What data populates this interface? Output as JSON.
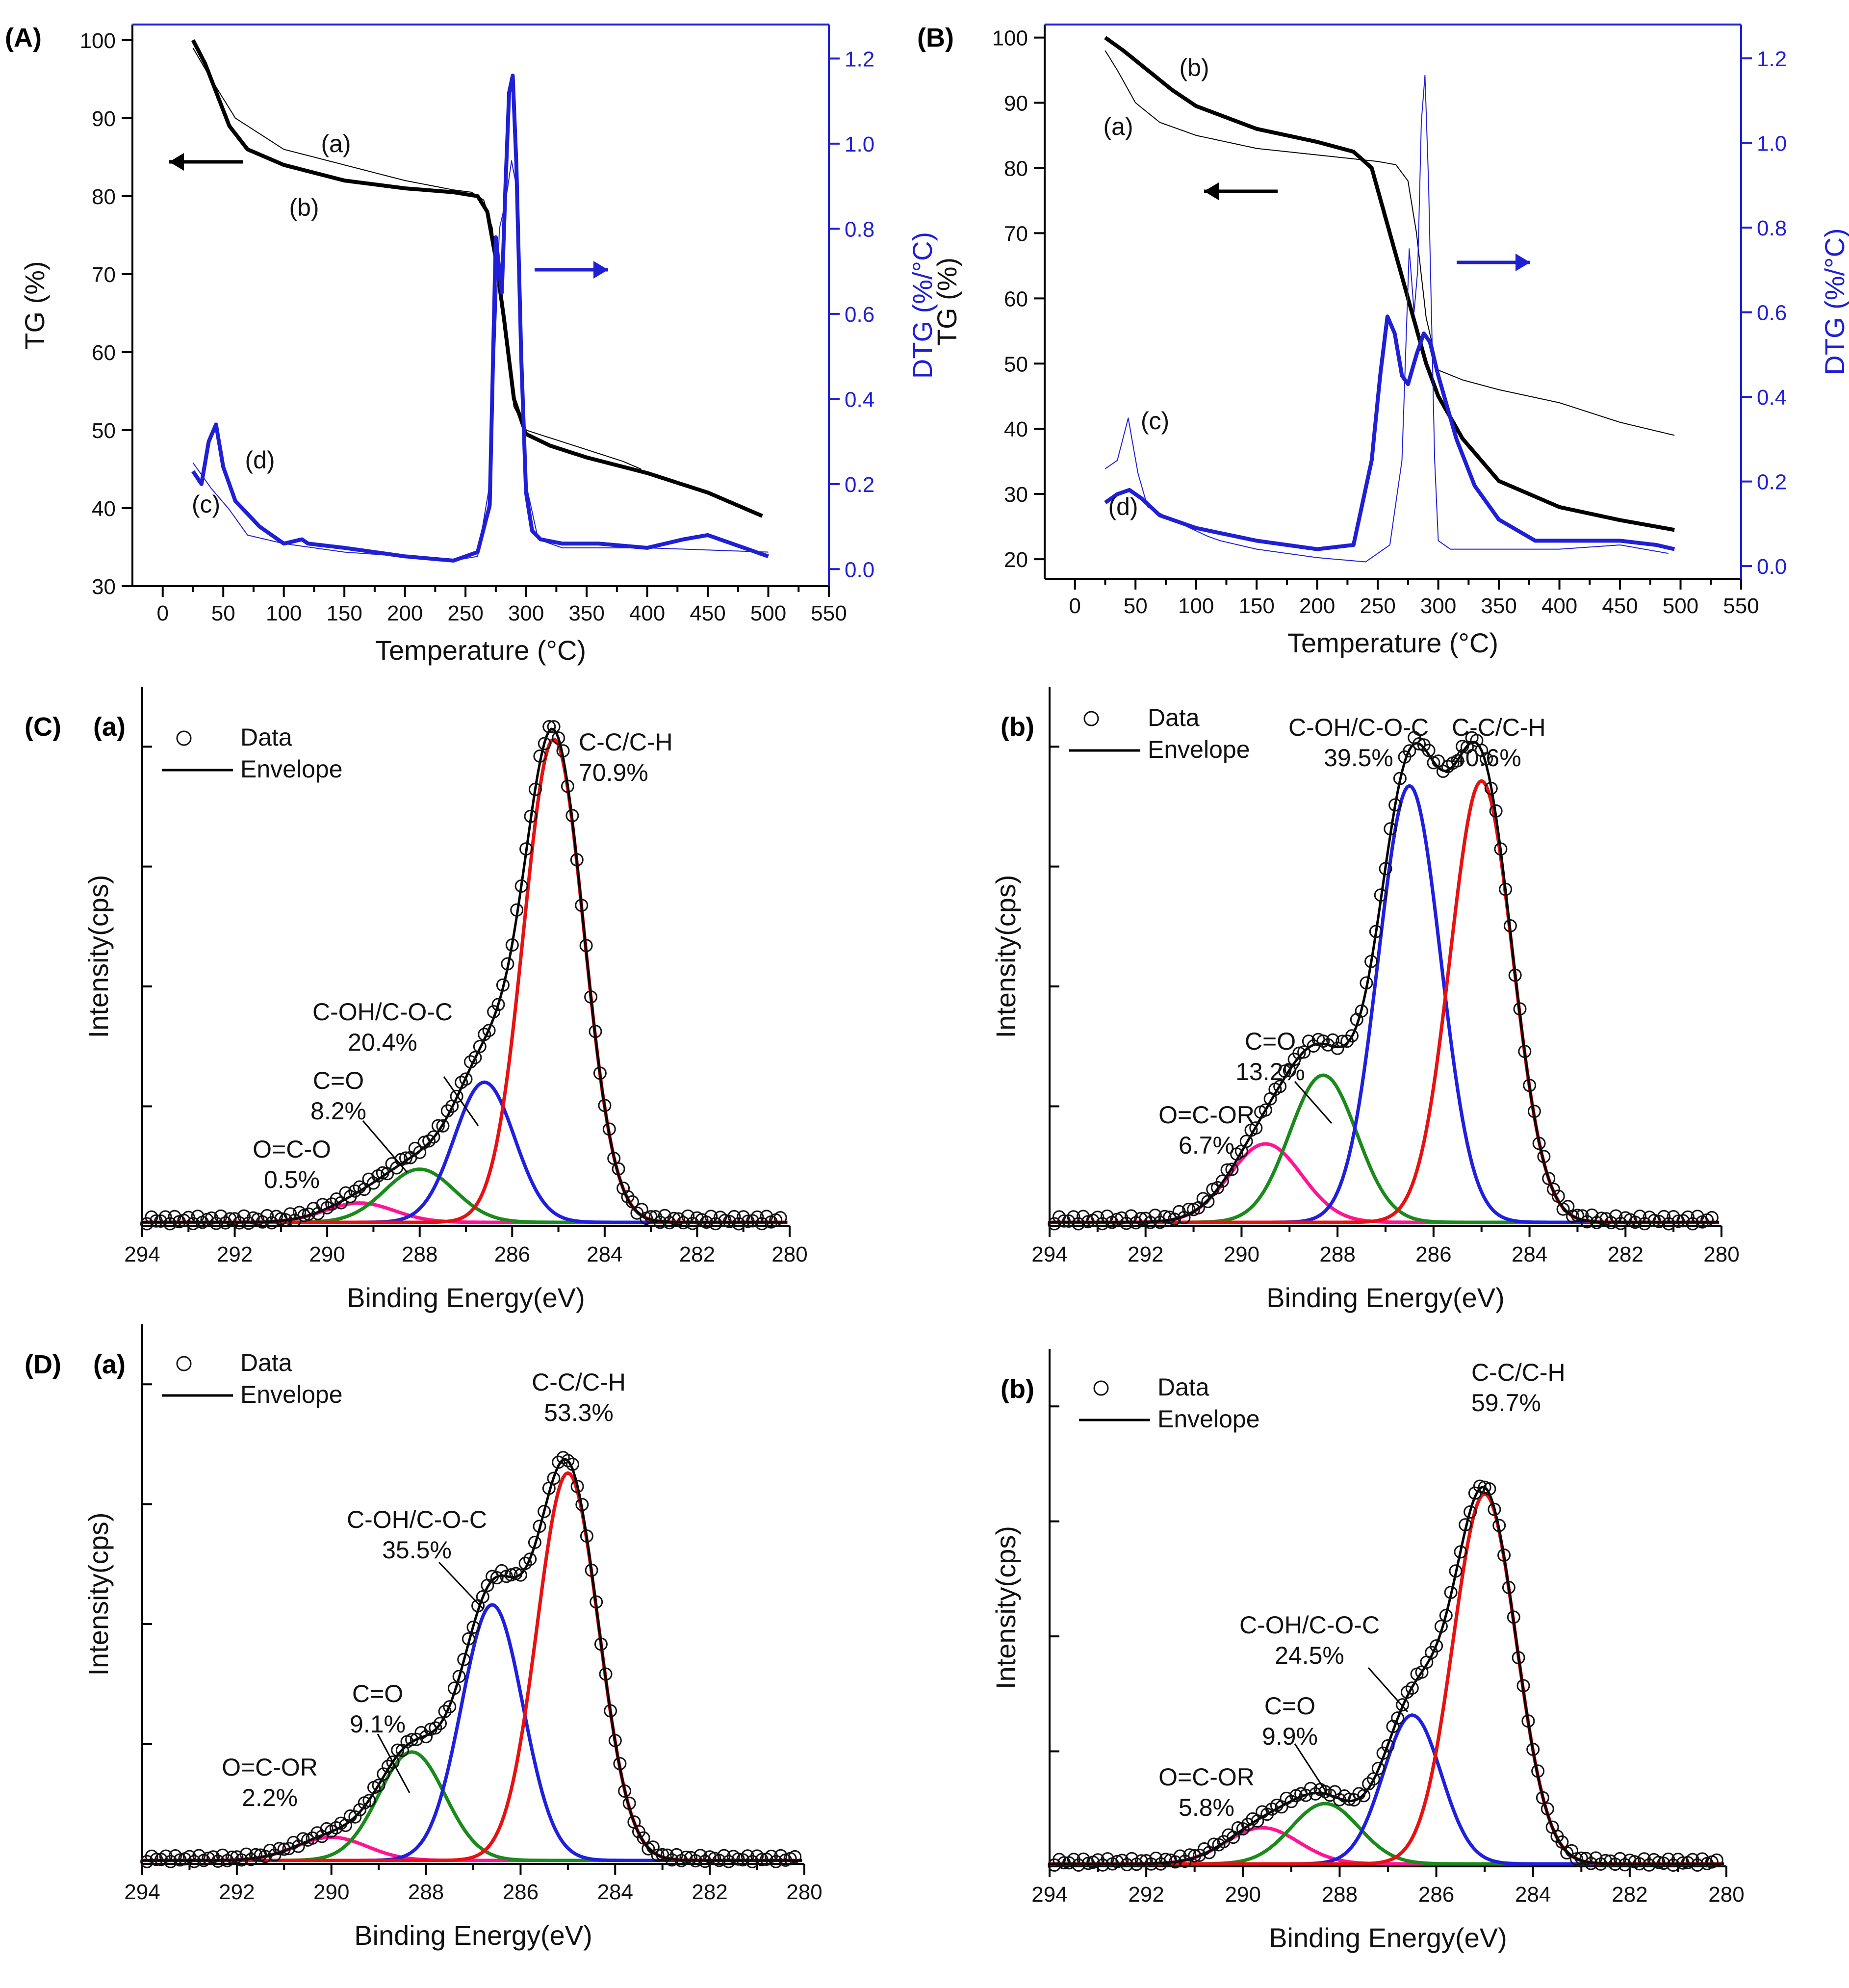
{
  "chart_data": [
    {
      "type": "line",
      "panel": "(A)",
      "xlabel": "Temperature (°C)",
      "ylabel": "TG (%)",
      "y2label": "DTG (%/°C)",
      "xlim": [
        -25,
        550
      ],
      "ylim": [
        30,
        102
      ],
      "y2lim": [
        -0.04,
        1.28
      ],
      "xticks": [
        "0",
        "50",
        "100",
        "150",
        "200",
        "250",
        "300",
        "350",
        "400",
        "450",
        "500",
        "550"
      ],
      "yticks": [
        "30",
        "40",
        "50",
        "60",
        "70",
        "80",
        "90",
        "100"
      ],
      "y2ticks": [
        "0.0",
        "0.2",
        "0.4",
        "0.6",
        "0.8",
        "1.0",
        "1.2"
      ],
      "series": [
        {
          "name": "(a)",
          "axis": "TG",
          "color": "#000000",
          "width": 2,
          "x": [
            25,
            40,
            60,
            80,
            100,
            150,
            200,
            240,
            255,
            265,
            272,
            280,
            290,
            300,
            320,
            350,
            380,
            395
          ],
          "y": [
            99,
            95,
            90,
            88,
            86,
            84,
            82,
            80.8,
            80.5,
            79.5,
            76,
            66,
            53,
            50,
            49,
            47.5,
            46,
            45
          ]
        },
        {
          "name": "(b)",
          "axis": "TG",
          "color": "#000000",
          "width": 8,
          "x": [
            25,
            35,
            45,
            55,
            70,
            100,
            150,
            200,
            240,
            260,
            268,
            275,
            282,
            290,
            300,
            320,
            350,
            400,
            450,
            495
          ],
          "y": [
            100,
            97,
            93,
            89,
            86,
            84,
            82,
            81,
            80.5,
            80,
            78,
            72,
            64,
            54,
            49.5,
            48,
            46.5,
            44.5,
            42,
            39
          ]
        },
        {
          "name": "(c)",
          "axis": "DTG",
          "color": "#1f1fd6",
          "width": 2,
          "x": [
            25,
            40,
            55,
            70,
            100,
            150,
            200,
            240,
            260,
            270,
            278,
            282,
            285,
            288,
            292,
            295,
            300,
            310,
            330,
            400,
            500
          ],
          "y": [
            0.25,
            0.19,
            0.14,
            0.08,
            0.06,
            0.04,
            0.03,
            0.02,
            0.03,
            0.2,
            0.8,
            0.85,
            0.9,
            0.96,
            0.9,
            0.6,
            0.2,
            0.07,
            0.05,
            0.05,
            0.04
          ]
        },
        {
          "name": "(d)",
          "axis": "DTG",
          "color": "#1f1fd6",
          "width": 8,
          "x": [
            25,
            32,
            38,
            44,
            50,
            60,
            80,
            100,
            115,
            120,
            150,
            200,
            240,
            260,
            270,
            275,
            280,
            283,
            286,
            289,
            292,
            296,
            300,
            305,
            312,
            330,
            360,
            400,
            430,
            450,
            470,
            490,
            500
          ],
          "y": [
            0.23,
            0.2,
            0.3,
            0.34,
            0.24,
            0.16,
            0.1,
            0.06,
            0.07,
            0.06,
            0.05,
            0.03,
            0.02,
            0.04,
            0.15,
            0.78,
            0.65,
            0.9,
            1.12,
            1.16,
            0.95,
            0.5,
            0.18,
            0.09,
            0.07,
            0.06,
            0.06,
            0.05,
            0.07,
            0.08,
            0.06,
            0.04,
            0.03
          ]
        }
      ],
      "annotations": [
        "(a)",
        "(b)",
        "(c)",
        "(d)"
      ]
    },
    {
      "type": "line",
      "panel": "(B)",
      "xlabel": "Temperature (°C)",
      "ylabel": "TG (%)",
      "y2label": "DTG (%/°C)",
      "xlim": [
        -25,
        550
      ],
      "ylim": [
        17,
        102
      ],
      "y2lim": [
        -0.03,
        1.28
      ],
      "xticks": [
        "0",
        "50",
        "100",
        "150",
        "200",
        "250",
        "300",
        "350",
        "400",
        "450",
        "500",
        "550"
      ],
      "yticks": [
        "20",
        "30",
        "40",
        "50",
        "60",
        "70",
        "80",
        "90",
        "100"
      ],
      "y2ticks": [
        "0.0",
        "0.2",
        "0.4",
        "0.6",
        "0.8",
        "1.0",
        "1.2"
      ],
      "series": [
        {
          "name": "(a)",
          "axis": "TG",
          "color": "#000000",
          "width": 2,
          "x": [
            25,
            35,
            50,
            70,
            100,
            150,
            200,
            250,
            265,
            275,
            282,
            290,
            300,
            320,
            350,
            400,
            450,
            495
          ],
          "y": [
            98,
            95,
            90,
            87,
            85,
            83,
            82,
            81,
            80.5,
            78,
            70,
            57,
            49,
            47.5,
            46,
            44,
            41,
            39
          ]
        },
        {
          "name": "(b)",
          "axis": "TG",
          "color": "#000000",
          "width": 8,
          "x": [
            25,
            40,
            60,
            80,
            100,
            150,
            200,
            230,
            245,
            260,
            275,
            290,
            300,
            320,
            350,
            400,
            450,
            495
          ],
          "y": [
            100,
            98,
            95,
            92,
            89.5,
            86,
            84,
            82.5,
            80,
            70,
            60,
            50,
            45,
            38.5,
            32,
            28,
            26,
            24.5
          ]
        },
        {
          "name": "(c)",
          "axis": "DTG",
          "color": "#1f1fd6",
          "width": 2,
          "x": [
            25,
            35,
            44,
            52,
            60,
            80,
            110,
            120,
            150,
            200,
            240,
            260,
            270,
            276,
            280,
            283,
            286,
            289,
            292,
            297,
            300,
            310,
            350,
            400,
            450,
            490
          ],
          "y": [
            0.23,
            0.25,
            0.35,
            0.22,
            0.14,
            0.11,
            0.07,
            0.06,
            0.04,
            0.02,
            0.01,
            0.05,
            0.25,
            0.75,
            0.6,
            0.7,
            1.05,
            1.16,
            0.9,
            0.25,
            0.06,
            0.04,
            0.04,
            0.04,
            0.05,
            0.03
          ]
        },
        {
          "name": "(d)",
          "axis": "DTG",
          "color": "#1f1fd6",
          "width": 8,
          "x": [
            25,
            35,
            45,
            55,
            70,
            100,
            150,
            200,
            230,
            245,
            252,
            258,
            264,
            270,
            275,
            282,
            288,
            293,
            300,
            315,
            330,
            350,
            380,
            420,
            450,
            480,
            495
          ],
          "y": [
            0.15,
            0.17,
            0.18,
            0.16,
            0.12,
            0.09,
            0.06,
            0.04,
            0.05,
            0.25,
            0.45,
            0.59,
            0.55,
            0.45,
            0.43,
            0.5,
            0.55,
            0.53,
            0.45,
            0.3,
            0.19,
            0.11,
            0.06,
            0.06,
            0.06,
            0.05,
            0.04
          ]
        }
      ],
      "annotations": [
        "(a)",
        "(b)",
        "(c)",
        "(d)"
      ]
    },
    {
      "type": "line",
      "panel": "(C)",
      "subpanel": "(a)",
      "xlabel": "Binding Energy(eV)",
      "ylabel": "Intensity(cps)",
      "xlim": [
        294,
        280
      ],
      "xticks": [
        "294",
        "292",
        "290",
        "288",
        "286",
        "284",
        "282",
        "280"
      ],
      "legend": [
        "Data",
        "Envelope"
      ],
      "components": [
        {
          "name": "O=C-O",
          "center": 289.3,
          "height": 0.04,
          "sigma": 0.75,
          "color": "#ff1493",
          "label": "O=C-O",
          "percent": "0.5%"
        },
        {
          "name": "C=O",
          "center": 288.0,
          "height": 0.11,
          "sigma": 0.75,
          "color": "#1a8a1a",
          "label": "C=O",
          "percent": "8.2%"
        },
        {
          "name": "C-OH/C-O-C",
          "center": 286.6,
          "height": 0.29,
          "sigma": 0.65,
          "color": "#1f1fe0",
          "label": "C-OH/C-O-C",
          "percent": "20.4%"
        },
        {
          "name": "C-C/C-H",
          "center": 285.1,
          "height": 1.0,
          "sigma": 0.65,
          "color": "#e81010",
          "label": "C-C/C-H",
          "percent": "70.9%"
        }
      ]
    },
    {
      "type": "line",
      "panel": "",
      "subpanel": "(b)",
      "xlabel": "Binding Energy(eV)",
      "ylabel": "Intensity(cps)",
      "xlim": [
        294,
        280
      ],
      "xticks": [
        "294",
        "292",
        "290",
        "288",
        "286",
        "284",
        "282",
        "280"
      ],
      "legend": [
        "Data",
        "Envelope"
      ],
      "components": [
        {
          "name": "O=C-OR",
          "center": 289.5,
          "height": 0.16,
          "sigma": 0.75,
          "color": "#ff1493",
          "label": "O=C-OR",
          "percent": "6.7%"
        },
        {
          "name": "C=O",
          "center": 288.3,
          "height": 0.3,
          "sigma": 0.7,
          "color": "#1a8a1a",
          "label": "C=O",
          "percent": "13.2%"
        },
        {
          "name": "C-OH/C-O-C",
          "center": 286.5,
          "height": 0.89,
          "sigma": 0.65,
          "color": "#1f1fe0",
          "label": "C-OH/C-O-C",
          "percent": "39.5%"
        },
        {
          "name": "C-C/C-H",
          "center": 285.0,
          "height": 0.9,
          "sigma": 0.65,
          "color": "#e81010",
          "label": "C-C/C-H",
          "percent": "40.6%"
        }
      ]
    },
    {
      "type": "line",
      "panel": "(D)",
      "subpanel": "(a)",
      "xlabel": "Binding Energy(eV)",
      "ylabel": "Intensity(cps)",
      "xlim": [
        294,
        280
      ],
      "xticks": [
        "294",
        "292",
        "290",
        "288",
        "286",
        "284",
        "282",
        "280"
      ],
      "legend": [
        "Data",
        "Envelope"
      ],
      "components": [
        {
          "name": "O=C-OR",
          "center": 290.0,
          "height": 0.06,
          "sigma": 0.75,
          "color": "#ff1493",
          "label": "O=C-OR",
          "percent": "2.2%"
        },
        {
          "name": "C=O",
          "center": 288.3,
          "height": 0.28,
          "sigma": 0.7,
          "color": "#1a8a1a",
          "label": "C=O",
          "percent": "9.1%"
        },
        {
          "name": "C-OH/C-O-C",
          "center": 286.6,
          "height": 0.66,
          "sigma": 0.65,
          "color": "#1f1fe0",
          "label": "C-OH/C-O-C",
          "percent": "35.5%"
        },
        {
          "name": "C-C/C-H",
          "center": 285.0,
          "height": 1.0,
          "sigma": 0.65,
          "color": "#e81010",
          "label": "C-C/C-H",
          "percent": "53.3%"
        }
      ]
    },
    {
      "type": "line",
      "panel": "",
      "subpanel": "(b)",
      "xlabel": "Binding Energy(eV)",
      "ylabel": "Intensity(cps)",
      "xlim": [
        294,
        280
      ],
      "xticks": [
        "294",
        "292",
        "290",
        "288",
        "286",
        "284",
        "282",
        "280"
      ],
      "legend": [
        "Data",
        "Envelope"
      ],
      "components": [
        {
          "name": "O=C-OR",
          "center": 289.6,
          "height": 0.09,
          "sigma": 0.75,
          "color": "#ff1493",
          "label": "O=C-OR",
          "percent": "5.8%"
        },
        {
          "name": "C=O",
          "center": 288.3,
          "height": 0.15,
          "sigma": 0.7,
          "color": "#1a8a1a",
          "label": "C=O",
          "percent": "9.9%"
        },
        {
          "name": "C-OH/C-O-C",
          "center": 286.5,
          "height": 0.37,
          "sigma": 0.6,
          "color": "#1f1fe0",
          "label": "C-OH/C-O-C",
          "percent": "24.5%"
        },
        {
          "name": "C-C/C-H",
          "center": 285.0,
          "height": 0.92,
          "sigma": 0.65,
          "color": "#e81010",
          "label": "C-C/C-H",
          "percent": "59.7%"
        }
      ]
    }
  ]
}
